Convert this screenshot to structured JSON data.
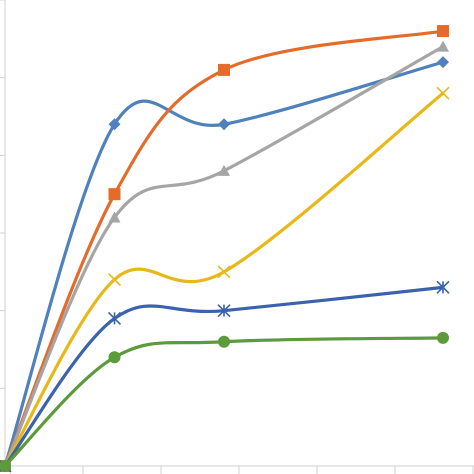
{
  "chart_data": {
    "type": "line",
    "smooth": true,
    "x": [
      0,
      1,
      2,
      4
    ],
    "xlim": [
      0,
      4
    ],
    "ylim": [
      0,
      6
    ],
    "grid": false,
    "legend": "none",
    "series": [
      {
        "color": "#4f81bd",
        "marker": "diamond",
        "values": [
          0,
          4.4,
          4.4,
          5.2
        ]
      },
      {
        "color": "#e46c2a",
        "marker": "square",
        "values": [
          0,
          3.5,
          5.1,
          5.6
        ]
      },
      {
        "color": "#a5a5a5",
        "marker": "triangle",
        "values": [
          0,
          3.2,
          3.8,
          5.4
        ]
      },
      {
        "color": "#e8b819",
        "marker": "x",
        "values": [
          0,
          2.4,
          2.5,
          4.8
        ]
      },
      {
        "color": "#3a62ad",
        "marker": "star",
        "values": [
          0,
          1.9,
          2.0,
          2.3
        ]
      },
      {
        "color": "#5c9a3c",
        "marker": "circle",
        "values": [
          0,
          1.4,
          1.6,
          1.65
        ]
      }
    ]
  }
}
